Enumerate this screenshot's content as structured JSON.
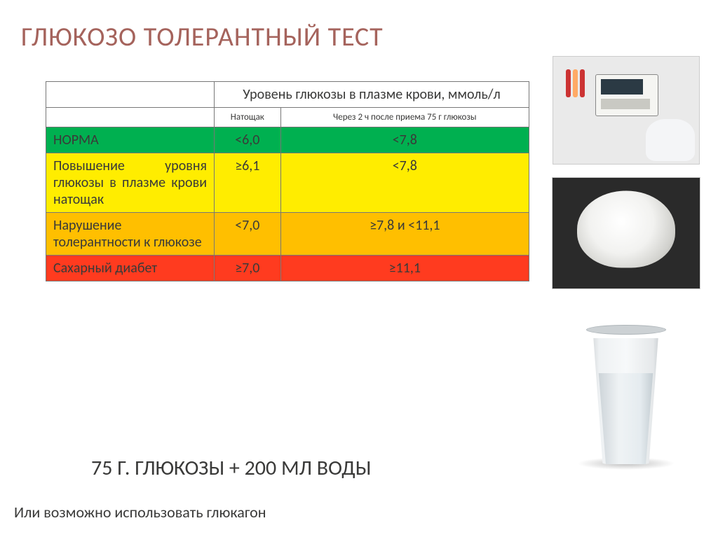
{
  "title": "ГЛЮКОЗО ТОЛЕРАНТНЫЙ ТЕСТ",
  "table": {
    "header_main": "Уровень глюкозы в плазме крови, ммоль/л",
    "sub1": "Натощак",
    "sub2": "Через 2 ч после приема 75 г глюкозы",
    "rows": [
      {
        "label": "НОРМА",
        "v1": "<6,0",
        "v2": "<7,8",
        "color": "#00b050"
      },
      {
        "label": "Повышение уровня глюкозы в плазме крови натощак",
        "v1": "≥6,1",
        "v2": "<7,8",
        "color": "#ffed00"
      },
      {
        "label": "Нарушение толерантности к глюкозе",
        "v1": "<7,0",
        "v2": "≥7,8 и <11,1",
        "color": "#ffbf00"
      },
      {
        "label": "Сахарный диабет",
        "v1": "≥7,0",
        "v2": "≥11,1",
        "color": "#ff3b1f"
      }
    ]
  },
  "formula": "75 Г. ГЛЮКОЗЫ + 200 МЛ ВОДЫ",
  "footnote": "Или возможно использовать глюкагон",
  "colors": {
    "title": "#a5635c",
    "text": "#3a3a39",
    "border": "#777777",
    "background": "#ffffff"
  },
  "images": {
    "lab": "lab-analyzer-photo",
    "powder": "white-glucose-powder-photo",
    "glass": "glass-of-water-photo"
  }
}
